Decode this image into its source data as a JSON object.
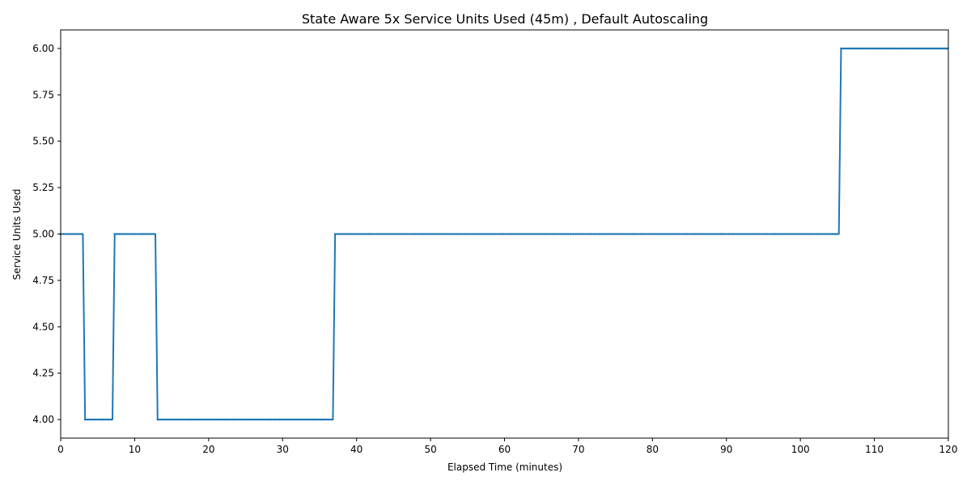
{
  "chart_data": {
    "type": "line",
    "title": "State Aware 5x Service Units Used (45m) , Default Autoscaling",
    "xlabel": "Elapsed Time (minutes)",
    "ylabel": "Service Units Used",
    "xlim": [
      0,
      120
    ],
    "ylim": [
      3.9,
      6.1
    ],
    "x_ticks": [
      0,
      10,
      20,
      30,
      40,
      50,
      60,
      70,
      80,
      90,
      100,
      110,
      120
    ],
    "y_ticks": [
      "4.00",
      "4.25",
      "4.50",
      "4.75",
      "5.00",
      "5.25",
      "5.50",
      "5.75",
      "6.00"
    ],
    "grid": false,
    "legend": "none",
    "series": [
      {
        "color": "#1f77b4",
        "x": [
          0,
          3.0,
          3.3,
          7.0,
          7.3,
          12.8,
          13.1,
          36.8,
          37.1,
          105.2,
          105.5,
          120
        ],
        "y": [
          5,
          5,
          4,
          4,
          5,
          5,
          4,
          4,
          5,
          5,
          6,
          6
        ]
      }
    ]
  }
}
